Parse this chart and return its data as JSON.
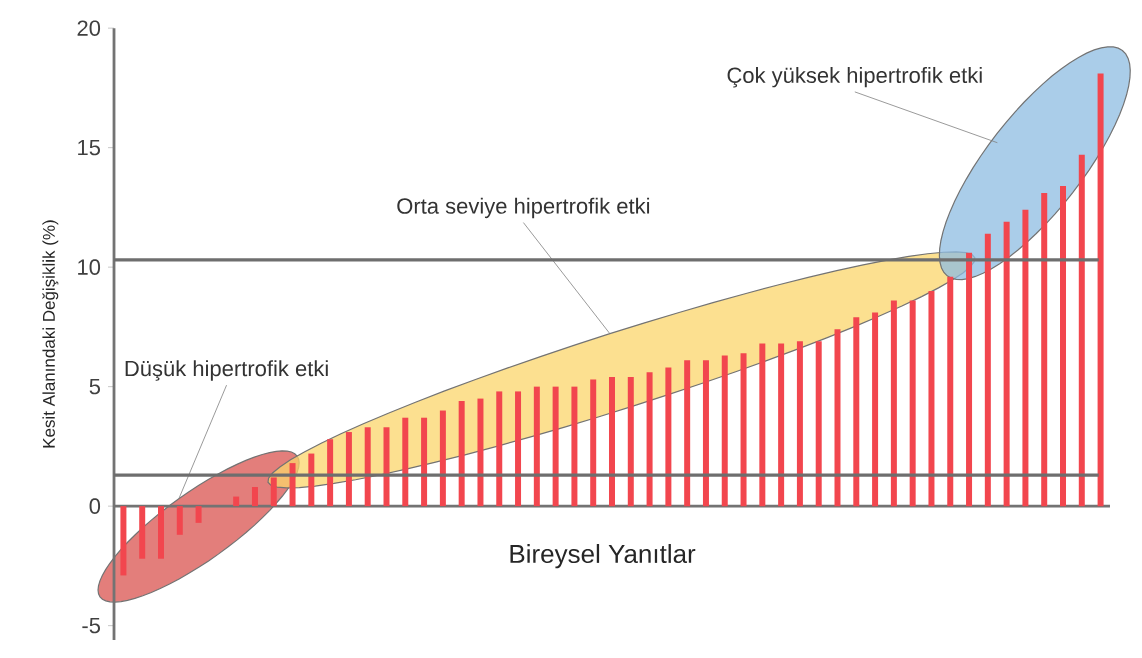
{
  "chart_data": {
    "type": "bar",
    "xlabel": "Bireysel Yanıtlar",
    "ylabel": "Kesit Alanındaki Değişiklik (%)",
    "categories": [
      null,
      null,
      null,
      null,
      null,
      null,
      null,
      null,
      null,
      null,
      null,
      null,
      null,
      null,
      null,
      null,
      null,
      null,
      null,
      null,
      null,
      null,
      null,
      null,
      null,
      null,
      null,
      null,
      null,
      null,
      null,
      null,
      null,
      null,
      null,
      null,
      null,
      null,
      null,
      null,
      null,
      null,
      null,
      null,
      null,
      null,
      null,
      null,
      null,
      null,
      null,
      null,
      null
    ],
    "values": [
      -2.9,
      -2.2,
      -2.2,
      -1.2,
      -0.7,
      0,
      0.4,
      0.8,
      1.2,
      1.8,
      2.2,
      2.8,
      3.1,
      3.3,
      3.3,
      3.7,
      3.7,
      4.0,
      4.4,
      4.5,
      4.8,
      4.8,
      5.0,
      5.0,
      5.0,
      5.3,
      5.4,
      5.4,
      5.6,
      5.8,
      6.1,
      6.1,
      6.3,
      6.4,
      6.8,
      6.8,
      6.9,
      6.9,
      7.4,
      7.9,
      8.1,
      8.6,
      8.6,
      9.0,
      9.6,
      10.6,
      11.4,
      11.9,
      12.4,
      13.1,
      13.4,
      14.7,
      18.1
    ],
    "color": "#f2464e",
    "ylim": [
      -5.6,
      20
    ],
    "yticks": [
      -5,
      0,
      5,
      10,
      15,
      20
    ],
    "ref_lines": [
      {
        "axis": "y",
        "value": 1.3,
        "color": "#6e6e6e"
      },
      {
        "axis": "y",
        "value": 10.3,
        "color": "#6e6e6e"
      }
    ],
    "annotations": [
      "Düşük hipertrofik etki",
      "Orta seviye hipertrofik etki",
      "Çok yüksek hipertrofik etki"
    ]
  }
}
